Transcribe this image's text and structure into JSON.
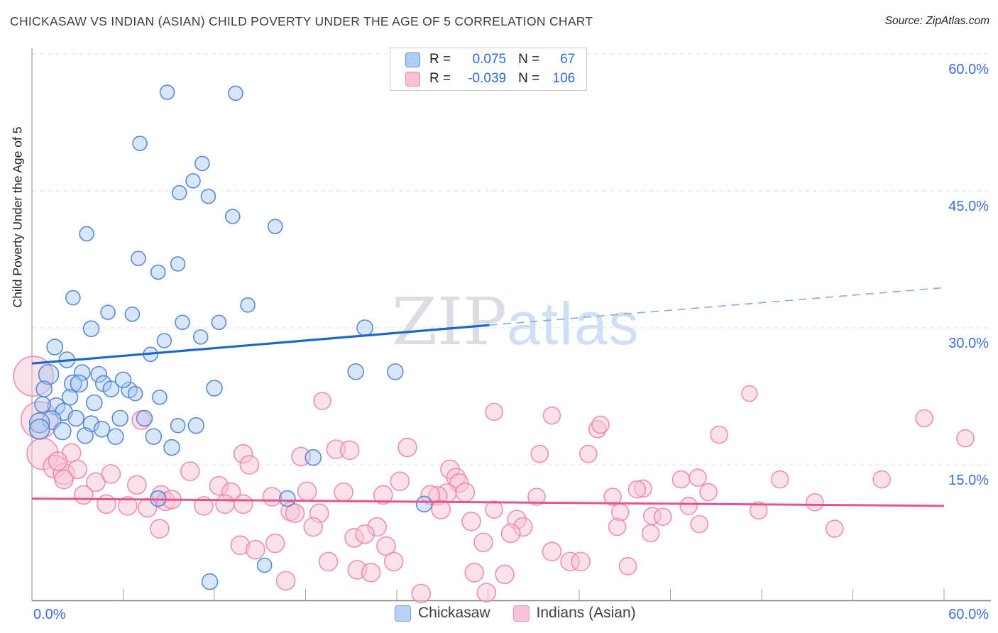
{
  "header": {
    "title": "CHICKASAW VS INDIAN (ASIAN) CHILD POVERTY UNDER THE AGE OF 5 CORRELATION CHART",
    "source": "Source: ZipAtlas.com"
  },
  "watermark": {
    "part1": "ZIP",
    "part2": "atlas"
  },
  "axes": {
    "y_label": "Child Poverty Under the Age of 5",
    "y_ticks": [
      {
        "value": 60,
        "label": "60.0%"
      },
      {
        "value": 45,
        "label": "45.0%"
      },
      {
        "value": 30,
        "label": "30.0%"
      },
      {
        "value": 15,
        "label": "15.0%"
      }
    ],
    "x_tick_values": [
      0,
      6,
      12,
      18,
      24,
      30,
      36,
      42,
      48,
      54,
      60
    ],
    "x_min_label": "0.0%",
    "x_max_label": "60.0%",
    "x_range": [
      0,
      60
    ],
    "y_range": [
      0,
      60
    ]
  },
  "colors": {
    "axis_label_blue": "#3d6fd8",
    "gridline": "#dcdce0",
    "axis_line": "#85898e",
    "blue_fill": "rgba(166,200,242,0.45)",
    "blue_stroke": "rgba(74,127,208,0.9)",
    "pink_fill": "rgba(247,195,214,0.5)",
    "pink_stroke": "rgba(238,132,168,0.9)",
    "blue_trend": "#1c66cf",
    "blue_trend_dashed": "#85abdf",
    "pink_trend": "#e9538a"
  },
  "legend_box": {
    "series": [
      {
        "r_label": "R =",
        "r_value": "0.075",
        "n_label": "N =",
        "n_value": "67"
      },
      {
        "r_label": "R =",
        "r_value": "-0.039",
        "n_label": "N =",
        "n_value": "106"
      }
    ]
  },
  "bottom_legend": {
    "items": [
      {
        "label": "Chickasaw"
      },
      {
        "label": "Indians (Asian)"
      }
    ]
  },
  "chart_data": {
    "type": "scatter",
    "title": "Chickasaw vs Indian (Asian) Child Poverty Under the Age of 5",
    "xlabel": "",
    "ylabel": "Child Poverty Under the Age of 5",
    "xlim": [
      0,
      60
    ],
    "ylim": [
      0,
      60
    ],
    "grid": "horizontal-dashed",
    "legend_position": "top-center",
    "series": [
      {
        "id": "chickasaw",
        "name": "Chickasaw",
        "R": 0.075,
        "N": 67,
        "points": [
          [
            8.9,
            55.8,
            10
          ],
          [
            13.4,
            55.7,
            10
          ],
          [
            7.1,
            50.2,
            10
          ],
          [
            11.2,
            48.0,
            10
          ],
          [
            10.6,
            46.1,
            10
          ],
          [
            9.7,
            44.8,
            10
          ],
          [
            11.6,
            44.4,
            10
          ],
          [
            13.2,
            42.2,
            10
          ],
          [
            16.0,
            41.1,
            10
          ],
          [
            3.6,
            40.3,
            10
          ],
          [
            7.0,
            37.6,
            10
          ],
          [
            9.6,
            37.0,
            10
          ],
          [
            8.3,
            36.1,
            10
          ],
          [
            2.7,
            33.3,
            10
          ],
          [
            5.0,
            31.7,
            10
          ],
          [
            6.6,
            31.5,
            10
          ],
          [
            3.9,
            29.9,
            11
          ],
          [
            9.9,
            30.6,
            10
          ],
          [
            11.1,
            29.0,
            10
          ],
          [
            12.3,
            30.6,
            10
          ],
          [
            1.5,
            27.9,
            11
          ],
          [
            7.8,
            27.1,
            10
          ],
          [
            2.3,
            26.5,
            11
          ],
          [
            1.1,
            24.9,
            14
          ],
          [
            3.3,
            25.1,
            11
          ],
          [
            4.4,
            24.9,
            11
          ],
          [
            2.7,
            23.9,
            12
          ],
          [
            3.1,
            23.9,
            12
          ],
          [
            4.7,
            23.9,
            11
          ],
          [
            5.2,
            23.3,
            11
          ],
          [
            6.4,
            23.2,
            11
          ],
          [
            12.0,
            23.4,
            11
          ],
          [
            1.6,
            21.4,
            12
          ],
          [
            2.1,
            20.8,
            12
          ],
          [
            1.3,
            19.9,
            13
          ],
          [
            0.5,
            19.6,
            14
          ],
          [
            0.5,
            18.9,
            14
          ],
          [
            2.0,
            18.7,
            12
          ],
          [
            3.9,
            19.5,
            11
          ],
          [
            3.5,
            18.2,
            11
          ],
          [
            5.5,
            18.1,
            11
          ],
          [
            7.4,
            20.1,
            11
          ],
          [
            8.0,
            18.1,
            11
          ],
          [
            10.8,
            19.3,
            11
          ],
          [
            9.2,
            16.9,
            11
          ],
          [
            23.9,
            25.2,
            11
          ],
          [
            21.3,
            25.2,
            11
          ],
          [
            21.9,
            30.0,
            11
          ],
          [
            18.5,
            15.8,
            11
          ],
          [
            16.8,
            11.3,
            11
          ],
          [
            25.8,
            10.7,
            11
          ],
          [
            8.3,
            11.3,
            11
          ],
          [
            11.7,
            2.2,
            11
          ],
          [
            15.3,
            4.0,
            10
          ],
          [
            0.8,
            23.3,
            11
          ],
          [
            2.5,
            22.4,
            11
          ],
          [
            4.1,
            21.8,
            11
          ],
          [
            5.8,
            20.1,
            11
          ],
          [
            2.9,
            20.1,
            11
          ],
          [
            4.6,
            18.9,
            11
          ],
          [
            0.7,
            21.6,
            11
          ],
          [
            8.4,
            22.4,
            10
          ],
          [
            6.8,
            22.8,
            10
          ],
          [
            9.6,
            19.3,
            10
          ],
          [
            8.7,
            28.6,
            10
          ],
          [
            14.2,
            32.5,
            10
          ],
          [
            6.0,
            24.3,
            11
          ]
        ]
      },
      {
        "id": "indian-asian",
        "name": "Indians (Asian)",
        "R": -0.039,
        "N": 106,
        "points": [
          [
            0.1,
            24.7,
            28
          ],
          [
            0.5,
            19.9,
            26
          ],
          [
            0.7,
            16.2,
            22
          ],
          [
            1.5,
            14.8,
            16
          ],
          [
            2.1,
            14.0,
            15
          ],
          [
            2.6,
            16.3,
            13
          ],
          [
            1.7,
            15.4,
            13
          ],
          [
            3.0,
            14.5,
            13
          ],
          [
            4.2,
            13.1,
            13
          ],
          [
            3.4,
            11.7,
            13
          ],
          [
            5.2,
            14.0,
            13
          ],
          [
            2.1,
            13.4,
            13
          ],
          [
            4.9,
            10.7,
            13
          ],
          [
            6.3,
            10.5,
            13
          ],
          [
            7.6,
            10.3,
            13
          ],
          [
            8.5,
            11.7,
            13
          ],
          [
            8.8,
            11.0,
            13
          ],
          [
            9.2,
            11.2,
            13
          ],
          [
            6.9,
            12.8,
            13
          ],
          [
            7.2,
            19.9,
            13
          ],
          [
            11.3,
            10.5,
            13
          ],
          [
            12.3,
            12.7,
            13
          ],
          [
            13.1,
            12.0,
            13
          ],
          [
            13.9,
            16.2,
            13
          ],
          [
            12.7,
            10.7,
            13
          ],
          [
            13.9,
            10.7,
            13
          ],
          [
            15.8,
            11.5,
            13
          ],
          [
            10.4,
            14.3,
            13
          ],
          [
            19.1,
            22.0,
            12
          ],
          [
            17.7,
            15.9,
            13
          ],
          [
            20.0,
            16.7,
            13
          ],
          [
            20.9,
            16.6,
            13
          ],
          [
            24.7,
            16.9,
            13
          ],
          [
            30.4,
            20.8,
            12
          ],
          [
            34.2,
            20.4,
            12
          ],
          [
            37.2,
            18.9,
            12
          ],
          [
            37.4,
            19.4,
            12
          ],
          [
            36.6,
            16.2,
            12
          ],
          [
            45.2,
            18.3,
            12
          ],
          [
            47.2,
            22.8,
            11
          ],
          [
            58.7,
            20.1,
            12
          ],
          [
            27.5,
            14.5,
            13
          ],
          [
            18.1,
            12.1,
            13
          ],
          [
            20.5,
            12.0,
            13
          ],
          [
            24.2,
            13.2,
            13
          ],
          [
            27.9,
            13.6,
            13
          ],
          [
            28.1,
            13.0,
            13
          ],
          [
            27.3,
            11.9,
            13
          ],
          [
            26.7,
            11.6,
            13
          ],
          [
            26.2,
            11.7,
            13
          ],
          [
            28.5,
            12.0,
            13
          ],
          [
            17.0,
            9.9,
            13
          ],
          [
            17.3,
            9.7,
            13
          ],
          [
            18.9,
            9.7,
            13
          ],
          [
            23.1,
            11.7,
            13
          ],
          [
            26.9,
            10.1,
            13
          ],
          [
            40.2,
            12.4,
            12
          ],
          [
            42.7,
            13.4,
            12
          ],
          [
            43.8,
            13.6,
            12
          ],
          [
            49.2,
            13.4,
            12
          ],
          [
            55.9,
            13.4,
            12
          ],
          [
            43.2,
            10.5,
            12
          ],
          [
            40.8,
            9.4,
            12
          ],
          [
            41.5,
            9.3,
            12
          ],
          [
            43.9,
            8.5,
            12
          ],
          [
            47.8,
            10.0,
            12
          ],
          [
            40.7,
            7.5,
            12
          ],
          [
            38.2,
            11.5,
            12
          ],
          [
            38.7,
            9.8,
            12
          ],
          [
            38.5,
            8.2,
            12
          ],
          [
            39.8,
            12.3,
            12
          ],
          [
            18.5,
            8.2,
            13
          ],
          [
            22.7,
            8.2,
            13
          ],
          [
            21.2,
            7.0,
            13
          ],
          [
            21.9,
            7.4,
            13
          ],
          [
            23.3,
            6.1,
            13
          ],
          [
            28.9,
            8.8,
            13
          ],
          [
            31.9,
            9.0,
            13
          ],
          [
            32.3,
            8.2,
            13
          ],
          [
            31.5,
            7.5,
            13
          ],
          [
            29.7,
            6.5,
            13
          ],
          [
            34.2,
            5.5,
            13
          ],
          [
            35.4,
            4.4,
            13
          ],
          [
            36.1,
            4.4,
            13
          ],
          [
            19.5,
            4.4,
            13
          ],
          [
            21.4,
            3.5,
            13
          ],
          [
            22.3,
            3.2,
            13
          ],
          [
            23.8,
            4.4,
            13
          ],
          [
            29.1,
            3.2,
            13
          ],
          [
            31.1,
            3.0,
            13
          ],
          [
            25.6,
            0.9,
            13
          ],
          [
            29.9,
            1.0,
            13
          ],
          [
            39.2,
            3.9,
            12
          ],
          [
            8.4,
            8.0,
            13
          ],
          [
            13.7,
            6.2,
            13
          ],
          [
            14.7,
            5.7,
            13
          ],
          [
            16.0,
            6.4,
            13
          ],
          [
            16.7,
            2.3,
            13
          ],
          [
            51.5,
            10.9,
            12
          ],
          [
            61.4,
            17.9,
            12
          ],
          [
            44.5,
            12.0,
            12
          ],
          [
            33.2,
            11.5,
            12
          ],
          [
            30.4,
            10.1,
            12
          ],
          [
            52.8,
            8.0,
            12
          ],
          [
            33.4,
            16.2,
            12
          ],
          [
            14.3,
            15.0,
            13
          ]
        ]
      }
    ],
    "trend_lines": [
      {
        "series": "Chickasaw",
        "style": "solid",
        "x1": 0,
        "y1": 26.1,
        "x2": 30.1,
        "y2": 30.3
      },
      {
        "series": "Chickasaw",
        "style": "dashed",
        "x1": 30.1,
        "y1": 30.3,
        "x2": 60,
        "y2": 34.4
      },
      {
        "series": "Indians (Asian)",
        "style": "solid",
        "x1": 0,
        "y1": 11.3,
        "x2": 60,
        "y2": 10.5
      }
    ]
  }
}
